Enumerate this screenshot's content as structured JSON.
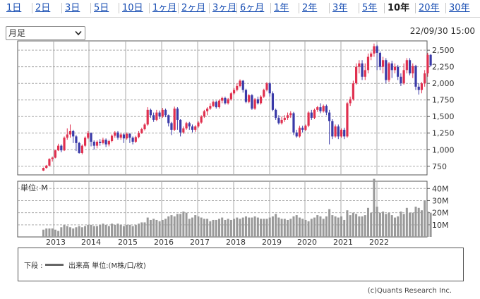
{
  "tabs": [
    {
      "label": "1日",
      "active": false
    },
    {
      "label": "2日",
      "active": false
    },
    {
      "label": "3日",
      "active": false
    },
    {
      "label": "5日",
      "active": false
    },
    {
      "label": "10日",
      "active": false
    },
    {
      "label": "1ヶ月",
      "active": false
    },
    {
      "label": "2ヶ月",
      "active": false
    },
    {
      "label": "3ヶ月",
      "active": false
    },
    {
      "label": "6ヶ月",
      "active": false
    },
    {
      "label": "1年",
      "active": false
    },
    {
      "label": "2年",
      "active": false
    },
    {
      "label": "3年",
      "active": false
    },
    {
      "label": "5年",
      "active": false
    },
    {
      "label": "10年",
      "active": true
    },
    {
      "label": "20年",
      "active": false
    },
    {
      "label": "30年",
      "active": false
    }
  ],
  "controls": {
    "period_select": "月足",
    "timestamp": "22/09/30 15:00"
  },
  "colors": {
    "up": "#e0304f",
    "down": "#3a3aa8",
    "volume": "#999999",
    "grid": "#aaaaaa",
    "border": "#555555"
  },
  "chart_data": {
    "type": "candlestick",
    "interval": "monthly",
    "x_axis_labels": [
      "2013",
      "2014",
      "2015",
      "2016",
      "2017",
      "2018",
      "2019",
      "2020",
      "2021",
      "2022"
    ],
    "price_axis": {
      "ticks": [
        "2,500",
        "2,250",
        "2,000",
        "1,750",
        "1,500",
        "1,250",
        "1,000",
        "750"
      ],
      "ylim": [
        620,
        2640
      ]
    },
    "volume_axis": {
      "label": "単位: M",
      "ticks": [
        "40M",
        "30M",
        "20M",
        "10M"
      ],
      "ylim": [
        0,
        46
      ]
    },
    "grid": true,
    "candles": [
      [
        685,
        725,
        680,
        730,
        6
      ],
      [
        725,
        760,
        715,
        770,
        7
      ],
      [
        760,
        860,
        750,
        870,
        7
      ],
      [
        860,
        880,
        820,
        895,
        7
      ],
      [
        880,
        990,
        870,
        1000,
        6
      ],
      [
        990,
        1060,
        980,
        1090,
        5
      ],
      [
        1060,
        990,
        960,
        1080,
        8
      ],
      [
        990,
        1180,
        980,
        1200,
        10
      ],
      [
        1180,
        1230,
        1150,
        1320,
        9
      ],
      [
        1230,
        1280,
        1180,
        1380,
        8
      ],
      [
        1280,
        1200,
        1100,
        1300,
        7
      ],
      [
        1200,
        1100,
        980,
        1220,
        8
      ],
      [
        1100,
        950,
        940,
        1120,
        9
      ],
      [
        950,
        1060,
        930,
        1080,
        8
      ],
      [
        1060,
        1180,
        1040,
        1200,
        9
      ],
      [
        1180,
        1250,
        1160,
        1280,
        10
      ],
      [
        1250,
        1120,
        1050,
        1260,
        10
      ],
      [
        1120,
        1060,
        1000,
        1140,
        9
      ],
      [
        1060,
        1120,
        1020,
        1140,
        9
      ],
      [
        1120,
        1100,
        1060,
        1160,
        10
      ],
      [
        1100,
        1150,
        1080,
        1180,
        11
      ],
      [
        1150,
        1080,
        1040,
        1170,
        10
      ],
      [
        1080,
        1130,
        1050,
        1150,
        9
      ],
      [
        1130,
        1210,
        1110,
        1230,
        11
      ],
      [
        1210,
        1260,
        1180,
        1280,
        10
      ],
      [
        1260,
        1180,
        1150,
        1280,
        11
      ],
      [
        1180,
        1230,
        1150,
        1250,
        10
      ],
      [
        1230,
        1170,
        1100,
        1250,
        9
      ],
      [
        1170,
        1240,
        1150,
        1260,
        10
      ],
      [
        1240,
        1180,
        1100,
        1250,
        10
      ],
      [
        1180,
        1120,
        1080,
        1200,
        9
      ],
      [
        1120,
        1190,
        1100,
        1210,
        10
      ],
      [
        1190,
        1250,
        1170,
        1280,
        11
      ],
      [
        1250,
        1310,
        1240,
        1330,
        12
      ],
      [
        1310,
        1380,
        1290,
        1400,
        12
      ],
      [
        1380,
        1600,
        1360,
        1640,
        16
      ],
      [
        1600,
        1520,
        1480,
        1620,
        14
      ],
      [
        1520,
        1450,
        1420,
        1560,
        15
      ],
      [
        1450,
        1560,
        1430,
        1600,
        14
      ],
      [
        1560,
        1500,
        1460,
        1590,
        13
      ],
      [
        1500,
        1600,
        1480,
        1630,
        14
      ],
      [
        1600,
        1520,
        1490,
        1620,
        15
      ],
      [
        1520,
        1400,
        1350,
        1530,
        17
      ],
      [
        1400,
        1300,
        1220,
        1420,
        18
      ],
      [
        1300,
        1620,
        1280,
        1650,
        17
      ],
      [
        1620,
        1450,
        1300,
        1640,
        19
      ],
      [
        1450,
        1260,
        1200,
        1460,
        19
      ],
      [
        1260,
        1320,
        1240,
        1350,
        21
      ],
      [
        1320,
        1400,
        1300,
        1420,
        20
      ],
      [
        1400,
        1350,
        1300,
        1420,
        15
      ],
      [
        1350,
        1300,
        1260,
        1380,
        16
      ],
      [
        1300,
        1350,
        1270,
        1370,
        18
      ],
      [
        1350,
        1410,
        1330,
        1430,
        17
      ],
      [
        1410,
        1500,
        1390,
        1520,
        16
      ],
      [
        1500,
        1580,
        1480,
        1600,
        15
      ],
      [
        1580,
        1620,
        1520,
        1640,
        15
      ],
      [
        1620,
        1660,
        1600,
        1700,
        13
      ],
      [
        1660,
        1720,
        1640,
        1740,
        14
      ],
      [
        1720,
        1640,
        1620,
        1740,
        14
      ],
      [
        1640,
        1740,
        1620,
        1760,
        15
      ],
      [
        1740,
        1780,
        1700,
        1800,
        16
      ],
      [
        1780,
        1700,
        1680,
        1800,
        14
      ],
      [
        1700,
        1760,
        1680,
        1780,
        15
      ],
      [
        1760,
        1850,
        1740,
        1870,
        14
      ],
      [
        1850,
        1900,
        1830,
        1930,
        15
      ],
      [
        1900,
        1960,
        1880,
        2000,
        16
      ],
      [
        1960,
        2040,
        1940,
        2060,
        15
      ],
      [
        2040,
        1900,
        1860,
        2050,
        16
      ],
      [
        1900,
        1720,
        1700,
        1920,
        17
      ],
      [
        1720,
        1820,
        1700,
        1840,
        16
      ],
      [
        1820,
        1620,
        1600,
        1840,
        16
      ],
      [
        1620,
        1760,
        1600,
        1780,
        17
      ],
      [
        1760,
        1700,
        1680,
        1800,
        16
      ],
      [
        1700,
        1800,
        1680,
        1820,
        15
      ],
      [
        1800,
        1900,
        1780,
        1920,
        15
      ],
      [
        1900,
        2000,
        1880,
        2020,
        15
      ],
      [
        2000,
        1850,
        1800,
        2020,
        16
      ],
      [
        1850,
        1600,
        1580,
        1880,
        17
      ],
      [
        1600,
        1480,
        1450,
        1620,
        19
      ],
      [
        1480,
        1400,
        1380,
        1520,
        16
      ],
      [
        1400,
        1450,
        1380,
        1500,
        15
      ],
      [
        1450,
        1480,
        1420,
        1520,
        15
      ],
      [
        1480,
        1520,
        1450,
        1560,
        14
      ],
      [
        1520,
        1550,
        1480,
        1580,
        15
      ],
      [
        1550,
        1260,
        1220,
        1570,
        17
      ],
      [
        1260,
        1200,
        1180,
        1300,
        18
      ],
      [
        1200,
        1330,
        1180,
        1360,
        16
      ],
      [
        1330,
        1300,
        1260,
        1360,
        15
      ],
      [
        1300,
        1360,
        1280,
        1380,
        14
      ],
      [
        1360,
        1560,
        1340,
        1580,
        13
      ],
      [
        1560,
        1480,
        1450,
        1600,
        15
      ],
      [
        1480,
        1600,
        1460,
        1620,
        16
      ],
      [
        1600,
        1640,
        1570,
        1660,
        18
      ],
      [
        1640,
        1580,
        1550,
        1700,
        17
      ],
      [
        1580,
        1660,
        1560,
        1680,
        15
      ],
      [
        1660,
        1560,
        1520,
        1680,
        17
      ],
      [
        1560,
        1430,
        1080,
        1600,
        23
      ],
      [
        1430,
        1200,
        1160,
        1460,
        18
      ],
      [
        1200,
        1350,
        1180,
        1380,
        17
      ],
      [
        1350,
        1200,
        1160,
        1380,
        16
      ],
      [
        1200,
        1300,
        1180,
        1320,
        17
      ],
      [
        1300,
        1200,
        1160,
        1330,
        14
      ],
      [
        1200,
        1700,
        1180,
        1720,
        22
      ],
      [
        1700,
        1760,
        1660,
        1800,
        18
      ],
      [
        1760,
        2000,
        1740,
        2040,
        20
      ],
      [
        2000,
        2250,
        1980,
        2300,
        19
      ],
      [
        2250,
        2300,
        2150,
        2350,
        17
      ],
      [
        2300,
        2100,
        2050,
        2350,
        17
      ],
      [
        2100,
        2200,
        2050,
        2300,
        18
      ],
      [
        2200,
        2400,
        2150,
        2450,
        24
      ],
      [
        2400,
        2450,
        2350,
        2480,
        20
      ],
      [
        2450,
        2560,
        2400,
        2600,
        48
      ],
      [
        2560,
        2460,
        2200,
        2580,
        25
      ],
      [
        2460,
        2250,
        2200,
        2480,
        20
      ],
      [
        2250,
        2350,
        2150,
        2400,
        21
      ],
      [
        2350,
        2050,
        2000,
        2380,
        19
      ],
      [
        2050,
        2300,
        2020,
        2320,
        20
      ],
      [
        2300,
        2200,
        2080,
        2340,
        18
      ],
      [
        2200,
        2250,
        2150,
        2300,
        16
      ],
      [
        2250,
        2100,
        2050,
        2280,
        17
      ],
      [
        2100,
        2000,
        1960,
        2150,
        21
      ],
      [
        2000,
        2200,
        1980,
        2300,
        19
      ],
      [
        2200,
        2350,
        2150,
        2380,
        24
      ],
      [
        2350,
        2150,
        2120,
        2380,
        20
      ],
      [
        2150,
        2260,
        2080,
        2300,
        20
      ],
      [
        2260,
        1950,
        1900,
        2280,
        25
      ],
      [
        1950,
        1900,
        1830,
        2000,
        24
      ],
      [
        1900,
        2000,
        1850,
        2020,
        22
      ],
      [
        2000,
        2150,
        1950,
        2200,
        30
      ],
      [
        2150,
        2430,
        2100,
        2460,
        21
      ],
      [
        2430,
        2270,
        2250,
        2440,
        20
      ]
    ],
    "legend": {
      "prefix": "下段 :",
      "label": "出来高 単位:(M株/口/枚)"
    }
  },
  "footer": {
    "copyright": "(c)Quants Research Inc."
  }
}
